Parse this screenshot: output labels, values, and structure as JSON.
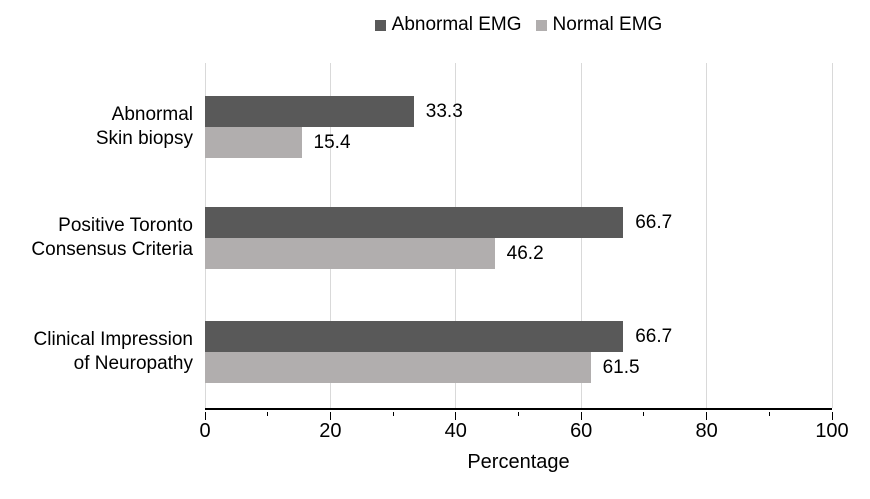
{
  "chart_data": {
    "type": "bar",
    "orientation": "horizontal",
    "title": "",
    "xlabel": "Percentage",
    "xlim": [
      0,
      100
    ],
    "x_ticks": [
      0,
      20,
      40,
      60,
      80,
      100
    ],
    "x_minor_ticks": [
      10,
      30,
      50,
      70,
      90
    ],
    "grid": "vertical-major",
    "legend_position": "top-center",
    "value_labels": true,
    "categories": [
      [
        "Abnormal",
        "Skin biopsy"
      ],
      [
        "Positive Toronto",
        "Consensus Criteria"
      ],
      [
        "Clinical Impression",
        "of Neuropathy"
      ]
    ],
    "series": [
      {
        "name": "Abnormal EMG",
        "color": "#595959",
        "values": [
          33.3,
          66.7,
          66.7
        ]
      },
      {
        "name": "Normal EMG",
        "color": "#b1aeae",
        "values": [
          15.4,
          46.2,
          61.5
        ]
      }
    ],
    "colors": {
      "gridline": "#d9d9d9",
      "axis": "#000000",
      "text": "#000000",
      "background": "#ffffff"
    }
  }
}
